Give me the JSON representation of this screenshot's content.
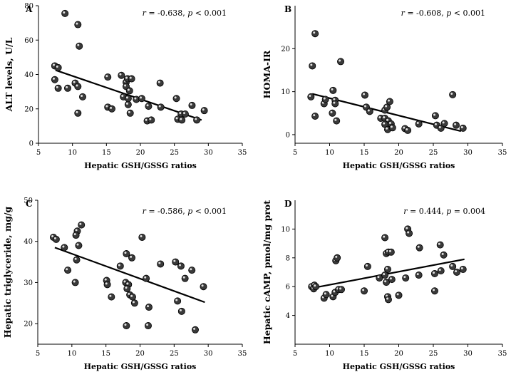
{
  "figure": {
    "background": "#ffffff",
    "ink": "#000000",
    "dot_fill": "#3a3a3a"
  },
  "chart_data": [
    {
      "type": "scatter",
      "panel": "A",
      "xlabel": "Hepatic GSH/GSSG ratios",
      "ylabel": "ALT levels, U/L",
      "xlim": [
        5,
        35
      ],
      "ylim": [
        0,
        80
      ],
      "xticks": [
        5,
        10,
        15,
        20,
        25,
        30,
        35
      ],
      "yticks": [
        0,
        20,
        40,
        60,
        80
      ],
      "annotation": {
        "r_label": "r",
        "r_value": " = -0.638, ",
        "p_label": "p",
        "p_value": " < 0.001"
      },
      "trendline": {
        "x": [
          7.5,
          29
        ],
        "y": [
          42.5,
          13.5
        ]
      },
      "points": [
        {
          "x": 8.9,
          "y": 75.5
        },
        {
          "x": 10.8,
          "y": 69
        },
        {
          "x": 11,
          "y": 56.5
        },
        {
          "x": 7.4,
          "y": 45
        },
        {
          "x": 7.9,
          "y": 44
        },
        {
          "x": 7.4,
          "y": 37
        },
        {
          "x": 7.9,
          "y": 32
        },
        {
          "x": 9.3,
          "y": 32
        },
        {
          "x": 10.4,
          "y": 35
        },
        {
          "x": 10.8,
          "y": 33
        },
        {
          "x": 11.5,
          "y": 27
        },
        {
          "x": 10.8,
          "y": 17.5
        },
        {
          "x": 15.2,
          "y": 38.5
        },
        {
          "x": 15.2,
          "y": 21
        },
        {
          "x": 15.8,
          "y": 20
        },
        {
          "x": 17.2,
          "y": 39.5
        },
        {
          "x": 17.9,
          "y": 35.5
        },
        {
          "x": 18.1,
          "y": 37.5
        },
        {
          "x": 18.7,
          "y": 37.5
        },
        {
          "x": 17.9,
          "y": 33
        },
        {
          "x": 18.4,
          "y": 30.5
        },
        {
          "x": 17.5,
          "y": 27
        },
        {
          "x": 18.2,
          "y": 26
        },
        {
          "x": 19.4,
          "y": 25.5
        },
        {
          "x": 20.2,
          "y": 26
        },
        {
          "x": 18.2,
          "y": 22.5
        },
        {
          "x": 18.5,
          "y": 17.5
        },
        {
          "x": 21.2,
          "y": 21.5
        },
        {
          "x": 21,
          "y": 13
        },
        {
          "x": 21.6,
          "y": 13.5
        },
        {
          "x": 22.9,
          "y": 35
        },
        {
          "x": 23,
          "y": 21
        },
        {
          "x": 25.3,
          "y": 26
        },
        {
          "x": 26,
          "y": 17
        },
        {
          "x": 25.5,
          "y": 14
        },
        {
          "x": 26.6,
          "y": 17
        },
        {
          "x": 26.1,
          "y": 13.5
        },
        {
          "x": 27.6,
          "y": 22
        },
        {
          "x": 28.3,
          "y": 13.5
        },
        {
          "x": 29.4,
          "y": 19
        }
      ]
    },
    {
      "type": "scatter",
      "panel": "B",
      "xlabel": "Hepatic GSH/GSSG ratios",
      "ylabel": "HOMA-IR",
      "xlim": [
        5,
        35
      ],
      "ylim": [
        -2,
        30
      ],
      "xticks": [
        5,
        10,
        15,
        20,
        25,
        30,
        35
      ],
      "yticks": [
        0,
        10,
        20
      ],
      "annotation": {
        "r_label": "r",
        "r_value": " = -0.608, ",
        "p_label": "p",
        "p_value": " < 0.001"
      },
      "trendline": {
        "x": [
          7.5,
          29
        ],
        "y": [
          9.5,
          0.8
        ]
      },
      "points": [
        {
          "x": 7.9,
          "y": 23.5
        },
        {
          "x": 7.5,
          "y": 16
        },
        {
          "x": 11.6,
          "y": 17
        },
        {
          "x": 7.3,
          "y": 8.8
        },
        {
          "x": 7.9,
          "y": 4.3
        },
        {
          "x": 9.2,
          "y": 7.2
        },
        {
          "x": 9.4,
          "y": 8.2
        },
        {
          "x": 10.5,
          "y": 10.3
        },
        {
          "x": 10.8,
          "y": 8
        },
        {
          "x": 10.8,
          "y": 7.2
        },
        {
          "x": 10.4,
          "y": 5
        },
        {
          "x": 11,
          "y": 3.2
        },
        {
          "x": 15.1,
          "y": 9.2
        },
        {
          "x": 15.3,
          "y": 6.4
        },
        {
          "x": 15.8,
          "y": 5.4
        },
        {
          "x": 17.4,
          "y": 3.8
        },
        {
          "x": 18,
          "y": 5.7
        },
        {
          "x": 18.3,
          "y": 6.4
        },
        {
          "x": 18.7,
          "y": 7.7
        },
        {
          "x": 18,
          "y": 3.8
        },
        {
          "x": 18.5,
          "y": 3.2
        },
        {
          "x": 18,
          "y": 2.4
        },
        {
          "x": 18.4,
          "y": 1.2
        },
        {
          "x": 18.9,
          "y": 2.5
        },
        {
          "x": 19.1,
          "y": 1.6
        },
        {
          "x": 20.9,
          "y": 1.4
        },
        {
          "x": 21.3,
          "y": 1
        },
        {
          "x": 22.9,
          "y": 2.5
        },
        {
          "x": 25.3,
          "y": 4.4
        },
        {
          "x": 25.5,
          "y": 2.2
        },
        {
          "x": 26.1,
          "y": 1.5
        },
        {
          "x": 26.6,
          "y": 2.6
        },
        {
          "x": 27.8,
          "y": 9.3
        },
        {
          "x": 28.3,
          "y": 2.2
        },
        {
          "x": 29.3,
          "y": 1.5
        }
      ]
    },
    {
      "type": "scatter",
      "panel": "C",
      "xlabel": "Hepatic GSH/GSSG ratios",
      "ylabel": "Hepatic triglyceride, mg/g",
      "xlim": [
        5,
        35
      ],
      "ylim": [
        15,
        50
      ],
      "xticks": [
        5,
        10,
        15,
        20,
        25,
        30,
        35
      ],
      "yticks": [
        20,
        30,
        40,
        50
      ],
      "annotation": {
        "r_label": "r",
        "r_value": " = -0.586, ",
        "p_label": "p",
        "p_value": " < 0.001"
      },
      "trendline": {
        "x": [
          7.5,
          29.5
        ],
        "y": [
          38.5,
          25.2
        ]
      },
      "points": [
        {
          "x": 11.4,
          "y": 44
        },
        {
          "x": 10.8,
          "y": 42.5
        },
        {
          "x": 10.6,
          "y": 41.5
        },
        {
          "x": 7.3,
          "y": 41
        },
        {
          "x": 7.7,
          "y": 40.5
        },
        {
          "x": 8.9,
          "y": 38.5
        },
        {
          "x": 11,
          "y": 39
        },
        {
          "x": 9.4,
          "y": 33
        },
        {
          "x": 10.7,
          "y": 35.5
        },
        {
          "x": 10.5,
          "y": 30
        },
        {
          "x": 15.1,
          "y": 30.5
        },
        {
          "x": 15.2,
          "y": 29.5
        },
        {
          "x": 15.8,
          "y": 26.5
        },
        {
          "x": 17.1,
          "y": 34
        },
        {
          "x": 18,
          "y": 37
        },
        {
          "x": 18.8,
          "y": 36
        },
        {
          "x": 20.3,
          "y": 41
        },
        {
          "x": 17.9,
          "y": 30
        },
        {
          "x": 18.3,
          "y": 29.5
        },
        {
          "x": 18.1,
          "y": 28.5
        },
        {
          "x": 18.5,
          "y": 27
        },
        {
          "x": 18.9,
          "y": 26.5
        },
        {
          "x": 19.2,
          "y": 25
        },
        {
          "x": 18,
          "y": 19.5
        },
        {
          "x": 20.9,
          "y": 31
        },
        {
          "x": 21.3,
          "y": 24
        },
        {
          "x": 21.2,
          "y": 19.5
        },
        {
          "x": 23,
          "y": 34.5
        },
        {
          "x": 25.2,
          "y": 35
        },
        {
          "x": 26,
          "y": 34
        },
        {
          "x": 25.5,
          "y": 25.5
        },
        {
          "x": 26.6,
          "y": 31
        },
        {
          "x": 26.1,
          "y": 23
        },
        {
          "x": 27.6,
          "y": 33
        },
        {
          "x": 28.1,
          "y": 18.5
        },
        {
          "x": 29.3,
          "y": 29
        }
      ]
    },
    {
      "type": "scatter",
      "panel": "D",
      "xlabel": "Hepatic GSH/GSSG ratios",
      "ylabel": "Hepatic cAMP, pmol/mg prot",
      "xlim": [
        5,
        35
      ],
      "ylim": [
        2,
        12
      ],
      "xticks": [
        5,
        10,
        15,
        20,
        25,
        30,
        35
      ],
      "yticks": [
        4,
        6,
        8,
        10
      ],
      "annotation": {
        "r_label": "r",
        "r_value": " = 0.444, ",
        "p_label": "p",
        "p_value": " = 0.004"
      },
      "trendline": {
        "x": [
          7.5,
          29.5
        ],
        "y": [
          5.9,
          7.9
        ]
      },
      "points": [
        {
          "x": 7.4,
          "y": 6
        },
        {
          "x": 7.8,
          "y": 6.1
        },
        {
          "x": 7.7,
          "y": 5.85
        },
        {
          "x": 8,
          "y": 6
        },
        {
          "x": 9.2,
          "y": 5.2
        },
        {
          "x": 9.5,
          "y": 5.45
        },
        {
          "x": 10.5,
          "y": 5.3
        },
        {
          "x": 10.8,
          "y": 5.6
        },
        {
          "x": 10.9,
          "y": 7.8
        },
        {
          "x": 11.1,
          "y": 8
        },
        {
          "x": 11.3,
          "y": 5.8
        },
        {
          "x": 11.7,
          "y": 5.8
        },
        {
          "x": 15,
          "y": 5.7
        },
        {
          "x": 15.5,
          "y": 7.4
        },
        {
          "x": 17.2,
          "y": 6.6
        },
        {
          "x": 18,
          "y": 9.4
        },
        {
          "x": 18.2,
          "y": 8.3
        },
        {
          "x": 18.5,
          "y": 8.4
        },
        {
          "x": 18.9,
          "y": 8.4
        },
        {
          "x": 18.4,
          "y": 7.2
        },
        {
          "x": 18,
          "y": 6.8
        },
        {
          "x": 18.2,
          "y": 6.3
        },
        {
          "x": 19,
          "y": 6.5
        },
        {
          "x": 18.4,
          "y": 5.3
        },
        {
          "x": 18.5,
          "y": 5.1
        },
        {
          "x": 20,
          "y": 5.4
        },
        {
          "x": 21,
          "y": 6.6
        },
        {
          "x": 21.3,
          "y": 10
        },
        {
          "x": 21.5,
          "y": 9.7
        },
        {
          "x": 23,
          "y": 8.7
        },
        {
          "x": 22.9,
          "y": 6.8
        },
        {
          "x": 25.2,
          "y": 6.9
        },
        {
          "x": 25.2,
          "y": 5.7
        },
        {
          "x": 26,
          "y": 8.9
        },
        {
          "x": 26.5,
          "y": 8.2
        },
        {
          "x": 26.1,
          "y": 7.1
        },
        {
          "x": 27.8,
          "y": 7.4
        },
        {
          "x": 28.4,
          "y": 7
        },
        {
          "x": 29.3,
          "y": 7.2
        }
      ]
    }
  ]
}
